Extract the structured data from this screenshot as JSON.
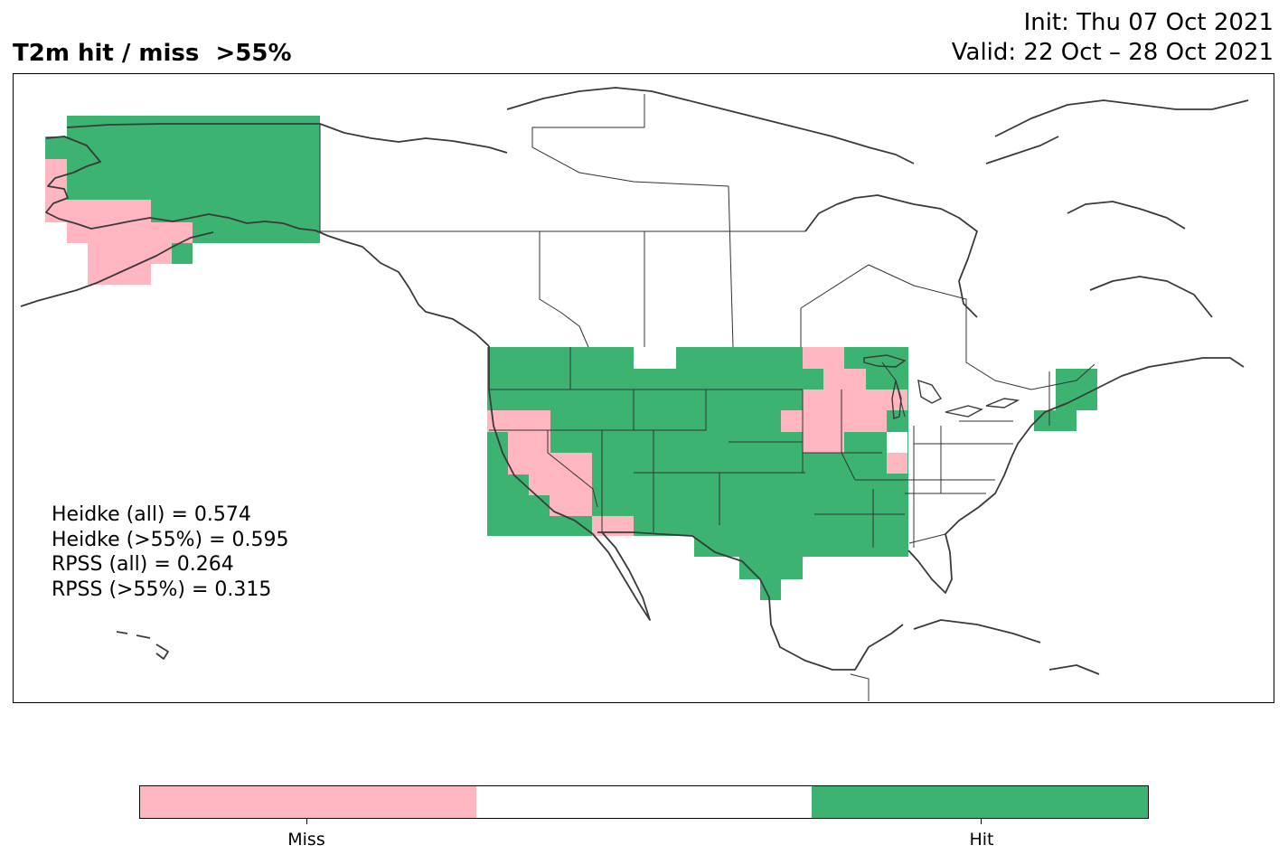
{
  "header": {
    "title": "T2m hit / miss  >55%",
    "init": "Init: Thu 07 Oct 2021",
    "valid": "Valid: 22 Oct – 28 Oct 2021"
  },
  "scores": [
    "Heidke (all) = 0.574",
    "Heidke (>55%) = 0.595",
    "RPSS (all) = 0.264",
    "RPSS (>55%) = 0.315"
  ],
  "colors": {
    "miss": "#ffb6c1",
    "neutral": "#ffffff",
    "hit": "#3cb371",
    "coastline": "#3a3a3a"
  },
  "legend": {
    "miss_label": "Miss",
    "hit_label": "Hit"
  }
}
